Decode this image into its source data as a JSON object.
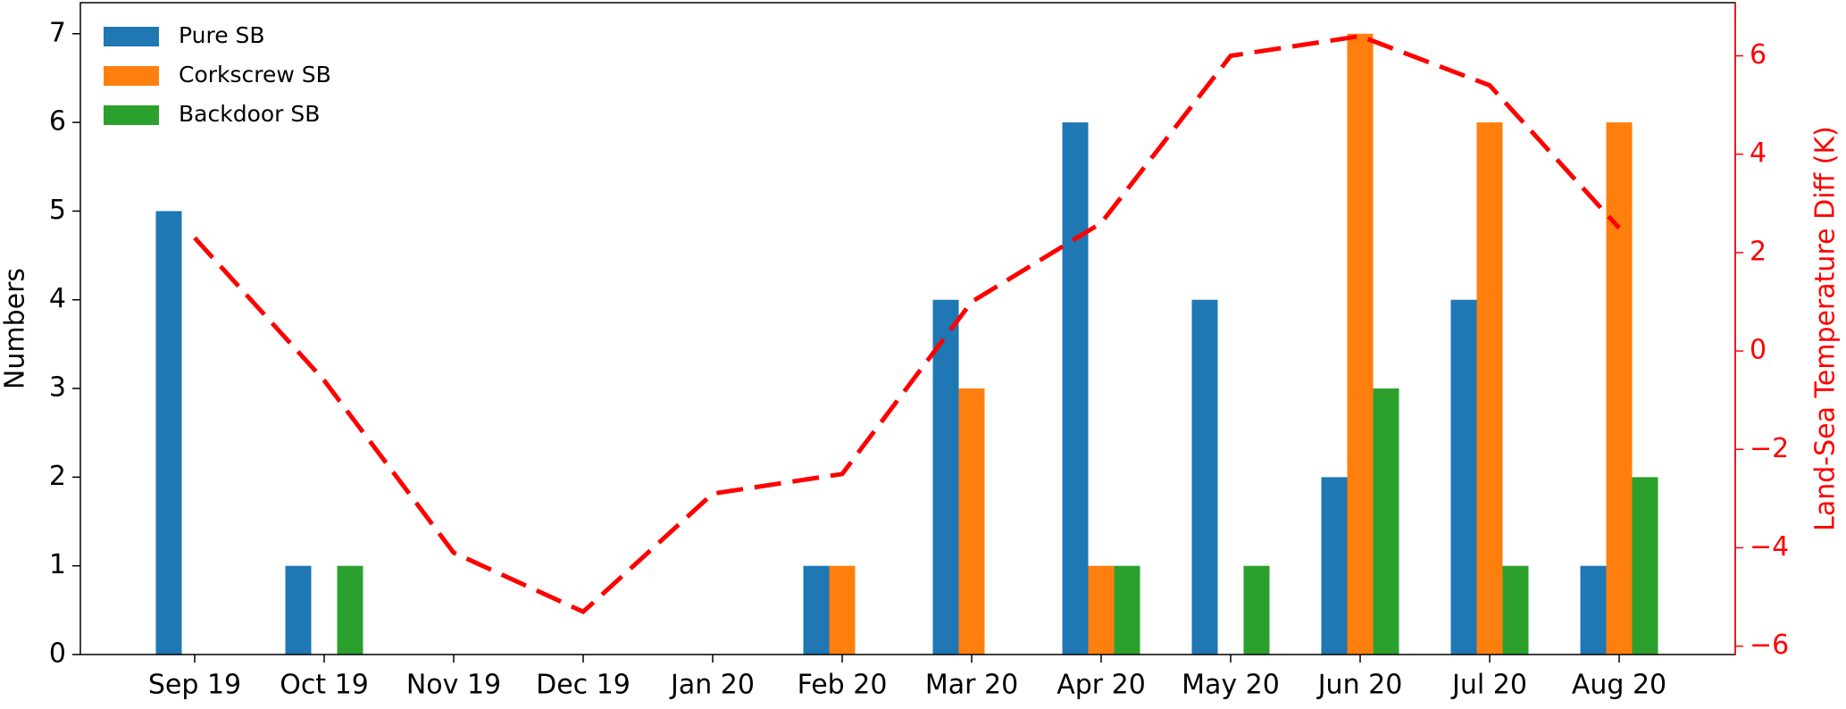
{
  "chart_data": {
    "type": "bar",
    "categories": [
      "Sep 19",
      "Oct 19",
      "Nov 19",
      "Dec 19",
      "Jan 20",
      "Feb 20",
      "Mar 20",
      "Apr 20",
      "May 20",
      "Jun 20",
      "Jul 20",
      "Aug 20"
    ],
    "y_label": "Numbers",
    "y2_label": "Land-Sea Temperature Diff (K)",
    "series": [
      {
        "name": "Pure SB",
        "color": "#1f77b4",
        "values": [
          5,
          1,
          0,
          0,
          0,
          1,
          4,
          6,
          4,
          2,
          4,
          1
        ]
      },
      {
        "name": "Corkscrew SB",
        "color": "#ff7f0e",
        "values": [
          0,
          0,
          0,
          0,
          0,
          1,
          3,
          1,
          0,
          7,
          6,
          6
        ]
      },
      {
        "name": "Backdoor SB",
        "color": "#2ca02c",
        "values": [
          0,
          1,
          0,
          0,
          0,
          0,
          0,
          1,
          1,
          3,
          1,
          2
        ]
      }
    ],
    "line": {
      "type": "line",
      "axis": "y2",
      "color": "#ff0000",
      "dashed": true,
      "values": [
        2.3,
        -0.6,
        -4.1,
        -5.3,
        -2.9,
        -2.5,
        1.0,
        2.6,
        6.0,
        6.4,
        5.4,
        2.5
      ]
    },
    "ylim": [
      0,
      7.35
    ],
    "yticks": [
      0,
      1,
      2,
      3,
      4,
      5,
      6,
      7
    ],
    "y2lim": [
      -6.17,
      7.08
    ],
    "y2ticks": [
      {
        "value": -6,
        "label": "−6"
      },
      {
        "value": -4,
        "label": "−4"
      },
      {
        "value": -2,
        "label": "−2"
      },
      0,
      2,
      4,
      6
    ],
    "y2_color": "#ff0000",
    "legend": "upper left"
  }
}
